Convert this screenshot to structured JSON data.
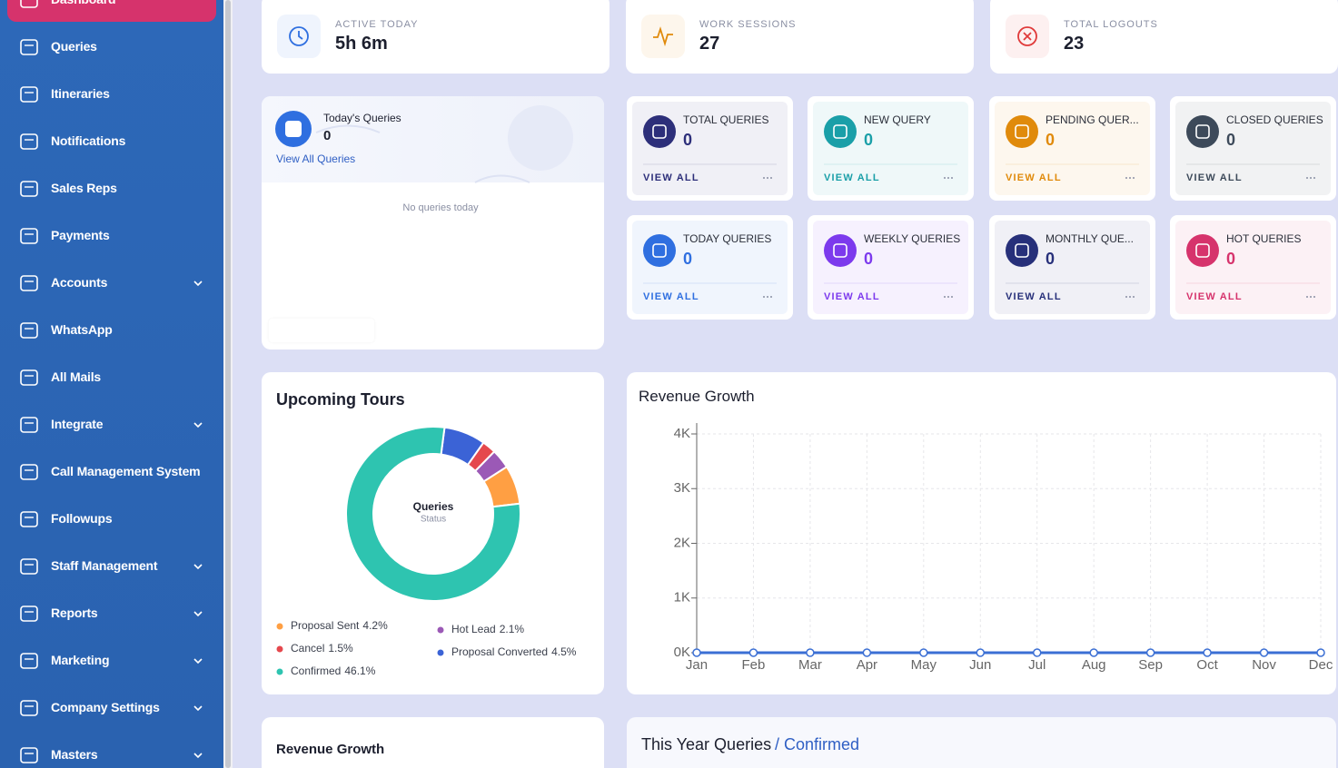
{
  "sidebar": {
    "items": [
      {
        "label": "Dashboard",
        "active": true
      },
      {
        "label": "Queries"
      },
      {
        "label": "Itineraries"
      },
      {
        "label": "Notifications"
      },
      {
        "label": "Sales Reps"
      },
      {
        "label": "Payments"
      },
      {
        "label": "Accounts",
        "expandable": true
      },
      {
        "label": "WhatsApp"
      },
      {
        "label": "All Mails"
      },
      {
        "label": "Integrate",
        "expandable": true
      },
      {
        "label": "Call Management System"
      },
      {
        "label": "Followups"
      },
      {
        "label": "Staff Management",
        "expandable": true
      },
      {
        "label": "Reports",
        "expandable": true
      },
      {
        "label": "Marketing",
        "expandable": true
      },
      {
        "label": "Company Settings",
        "expandable": true
      },
      {
        "label": "Masters",
        "expandable": true
      }
    ]
  },
  "stats": [
    {
      "label": "ACTIVE TODAY",
      "value": "5h 6m",
      "color": "#2f6fe0"
    },
    {
      "label": "WORK SESSIONS",
      "value": 27,
      "color": "#e08a0b"
    },
    {
      "label": "TOTAL LOGOUTS",
      "value": 23,
      "color": "#e03a3a"
    }
  ],
  "todays_queries": {
    "title": "Today's Queries",
    "count": 0,
    "link": "View All Queries",
    "empty_text": "No queries today"
  },
  "query_cards": [
    {
      "label": "TOTAL QUERIES",
      "count": 0,
      "link": "VIEW ALL",
      "color": "#2d2f7a"
    },
    {
      "label": "NEW QUERY",
      "count": 0,
      "link": "VIEW ALL",
      "color": "#1a9fa8"
    },
    {
      "label": "PENDING QUER...",
      "count": 0,
      "link": "VIEW ALL",
      "color": "#e08a0b"
    },
    {
      "label": "CLOSED QUERIES",
      "count": 0,
      "link": "VIEW ALL",
      "color": "#3d4a5a"
    },
    {
      "label": "TODAY QUERIES",
      "count": 0,
      "link": "VIEW ALL",
      "color": "#2f6fe0"
    },
    {
      "label": "WEEKLY QUERIES",
      "count": 0,
      "link": "VIEW ALL",
      "color": "#7c3aed"
    },
    {
      "label": "MONTHLY QUE...",
      "count": 0,
      "link": "VIEW ALL",
      "color": "#27307a"
    },
    {
      "label": "HOT QUERIES",
      "count": 0,
      "link": "VIEW ALL",
      "color": "#d6336c"
    }
  ],
  "chart_data": [
    {
      "type": "pie",
      "title": "Upcoming Tours",
      "center_title": "Queries",
      "center_subtitle": "Status",
      "donut": true,
      "categories": [
        "Proposal Converted",
        "Cancel",
        "Hot Lead",
        "Proposal Sent",
        "Confirmed"
      ],
      "values": [
        4.5,
        1.5,
        2.1,
        4.2,
        46.1
      ],
      "value_labels": [
        "4.5%",
        "1.5%",
        "2.1%",
        "4.2%",
        "46.1%"
      ],
      "colors": [
        "#3b63d6",
        "#e5484d",
        "#9b59b6",
        "#ff9f43",
        "#2ec4b0"
      ]
    },
    {
      "type": "line",
      "title": "Revenue Growth",
      "categories": [
        "Jan",
        "Feb",
        "Mar",
        "Apr",
        "May",
        "Jun",
        "Jul",
        "Aug",
        "Sep",
        "Oct",
        "Nov",
        "Dec"
      ],
      "values": [
        0,
        0,
        0,
        0,
        0,
        0,
        0,
        0,
        0,
        0,
        0,
        0
      ],
      "color": "#3b6fd4",
      "ylim": [
        0,
        4000
      ],
      "yticks": [
        {
          "value": 0,
          "label": "0K"
        },
        {
          "value": 1000,
          "label": "1K"
        },
        {
          "value": 2000,
          "label": "2K"
        },
        {
          "value": 3000,
          "label": "3K"
        },
        {
          "value": 4000,
          "label": "4K"
        }
      ],
      "grid": true
    }
  ],
  "bottom_cards": {
    "left_title": "Revenue Growth",
    "right_title": "This Year Queries",
    "right_subtitle": "/ Confirmed"
  }
}
